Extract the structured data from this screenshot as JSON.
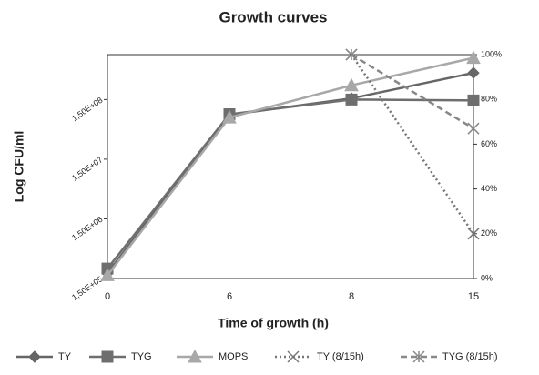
{
  "chart_data": {
    "type": "line",
    "title": "Growth curves",
    "x_label": "Time of growth (h)",
    "y_label": "Log CFU/ml",
    "categories": [
      "0",
      "6",
      "8",
      "15"
    ],
    "log_y": true,
    "ylim": [
      150000,
      850000000
    ],
    "yticks": [
      {
        "value": 150000,
        "label": "1,50E+05"
      },
      {
        "value": 1500000,
        "label": "1,50E+06"
      },
      {
        "value": 15000000,
        "label": "1,50E+07"
      },
      {
        "value": 150000000,
        "label": "1,50E+08"
      }
    ],
    "y2lim": [
      0,
      100
    ],
    "y2ticks": [
      {
        "value": 0,
        "label": "0%"
      },
      {
        "value": 20,
        "label": "20%"
      },
      {
        "value": 40,
        "label": "40%"
      },
      {
        "value": 60,
        "label": "60%"
      },
      {
        "value": 80,
        "label": "80%"
      },
      {
        "value": 100,
        "label": "100%"
      }
    ],
    "legend": "bottom",
    "series": [
      {
        "name": "TY",
        "color": "#666666",
        "marker": "diamond",
        "dash": "solid",
        "values": [
          185000,
          83000000,
          157000000,
          420000000
        ]
      },
      {
        "name": "TYG",
        "color": "#6e6e6e",
        "marker": "square",
        "dash": "solid",
        "values": [
          220000,
          85000000,
          150000000,
          145000000
        ]
      },
      {
        "name": "MOPS",
        "color": "#a8a8a8",
        "marker": "triangle",
        "dash": "solid",
        "values": [
          170000,
          75000000,
          260000000,
          750000000
        ]
      },
      {
        "name": "TY (8/15h)",
        "color": "#777777",
        "marker": "x",
        "dash": "dotted",
        "axis": "y2",
        "values": [
          null,
          null,
          100,
          20
        ]
      },
      {
        "name": "TYG (8/15h)",
        "color": "#888888",
        "marker": "asterisk",
        "dash": "dashed",
        "axis": "y2",
        "values": [
          null,
          null,
          100,
          67
        ]
      }
    ]
  }
}
